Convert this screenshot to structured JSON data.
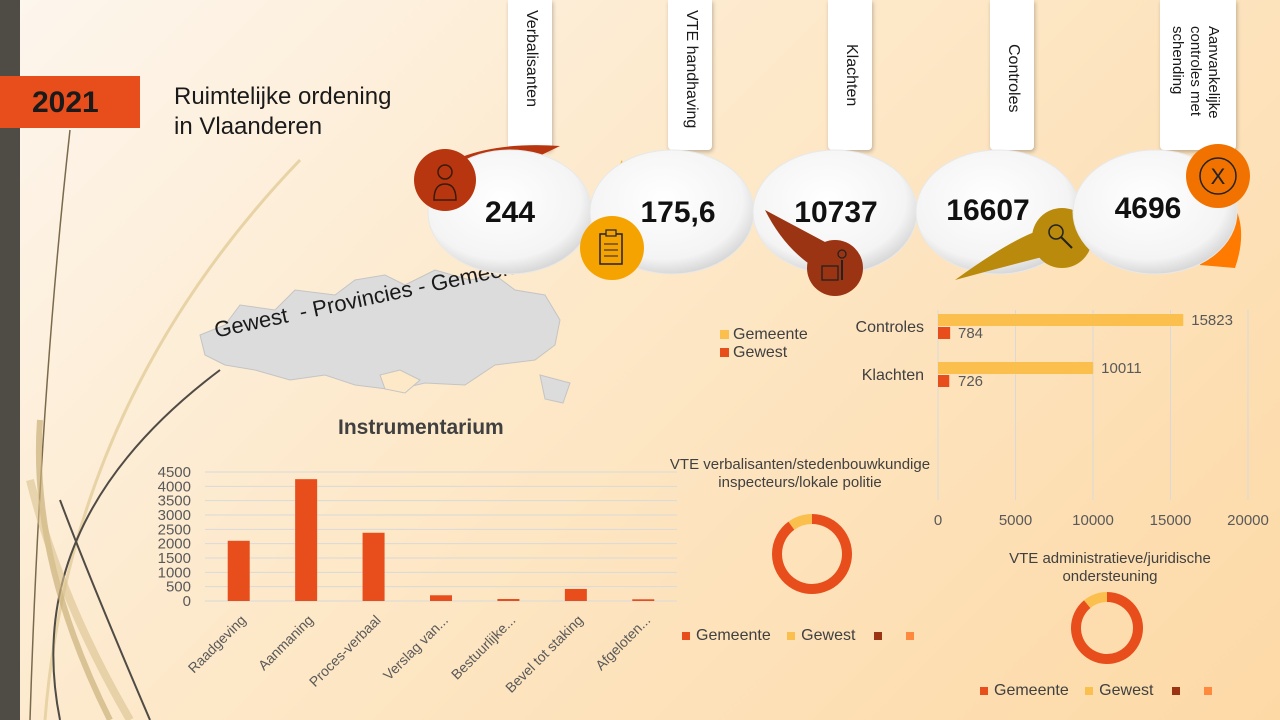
{
  "header": {
    "year": "2021",
    "title_line1": "Ruimtelijke ordening",
    "title_line2": "in Vlaanderen"
  },
  "map": {
    "label": "Gewest  - Provincies - Gemeenten"
  },
  "kpis": [
    {
      "label": "Verbalisanten",
      "value": "244"
    },
    {
      "label": "VTE handhaving",
      "value": "175,6"
    },
    {
      "label": "Klachten",
      "value": "10737"
    },
    {
      "label": "Controles",
      "value": "16607"
    },
    {
      "label": "Aanvankelijke controles met schending",
      "value": "4696"
    }
  ],
  "colors": {
    "orange": "#e84d1c",
    "yellow": "#fbbf4d",
    "rust": "#b8360f",
    "gold": "#b98a0c",
    "amber": "#f5a300"
  },
  "icons": [
    "person-icon",
    "clipboard-icon",
    "complaint-icon",
    "magnifier-icon",
    "x-circle-icon"
  ],
  "chart_data": [
    {
      "type": "bar",
      "title": "Instrumentarium",
      "categories": [
        "Raadgeving",
        "Aanmaning",
        "Proces-verbaal",
        "Verslag van...",
        "Bestuurlijke...",
        "Bevel tot staking",
        "Afgeloten..."
      ],
      "values": [
        2100,
        4250,
        2380,
        200,
        70,
        420,
        60
      ],
      "ylim": [
        0,
        4500
      ],
      "yticks": [
        "0",
        "500",
        "1000",
        "1500",
        "2000",
        "2500",
        "3000",
        "3500",
        "4000",
        "4500"
      ],
      "grid": true
    },
    {
      "type": "bar",
      "orientation": "horizontal",
      "categories": [
        "Controles",
        "Klachten"
      ],
      "series": [
        {
          "name": "Gemeente",
          "values": [
            15823,
            10011
          ],
          "labels": [
            "15823",
            "10011"
          ]
        },
        {
          "name": "Gewest",
          "values": [
            784,
            726
          ],
          "labels": [
            "784",
            "726"
          ]
        }
      ],
      "xlim": [
        0,
        20000
      ],
      "xticks": [
        "0",
        "5000",
        "10000",
        "15000",
        "20000"
      ],
      "legend": "left",
      "grid": true
    },
    {
      "type": "pie",
      "style": "donut",
      "title": "VTE verbalisanten/stedenbouwkundige inspecteurs/lokale politie",
      "series": [
        {
          "name": "Gemeente",
          "value": 90
        },
        {
          "name": "Gewest",
          "value": 10
        }
      ],
      "legend": "bottom"
    },
    {
      "type": "pie",
      "style": "donut",
      "title": "VTE administratieve/juridische ondersteuning",
      "series": [
        {
          "name": "Gemeente",
          "value": 89
        },
        {
          "name": "Gewest",
          "value": 11
        }
      ],
      "legend": "bottom"
    }
  ]
}
